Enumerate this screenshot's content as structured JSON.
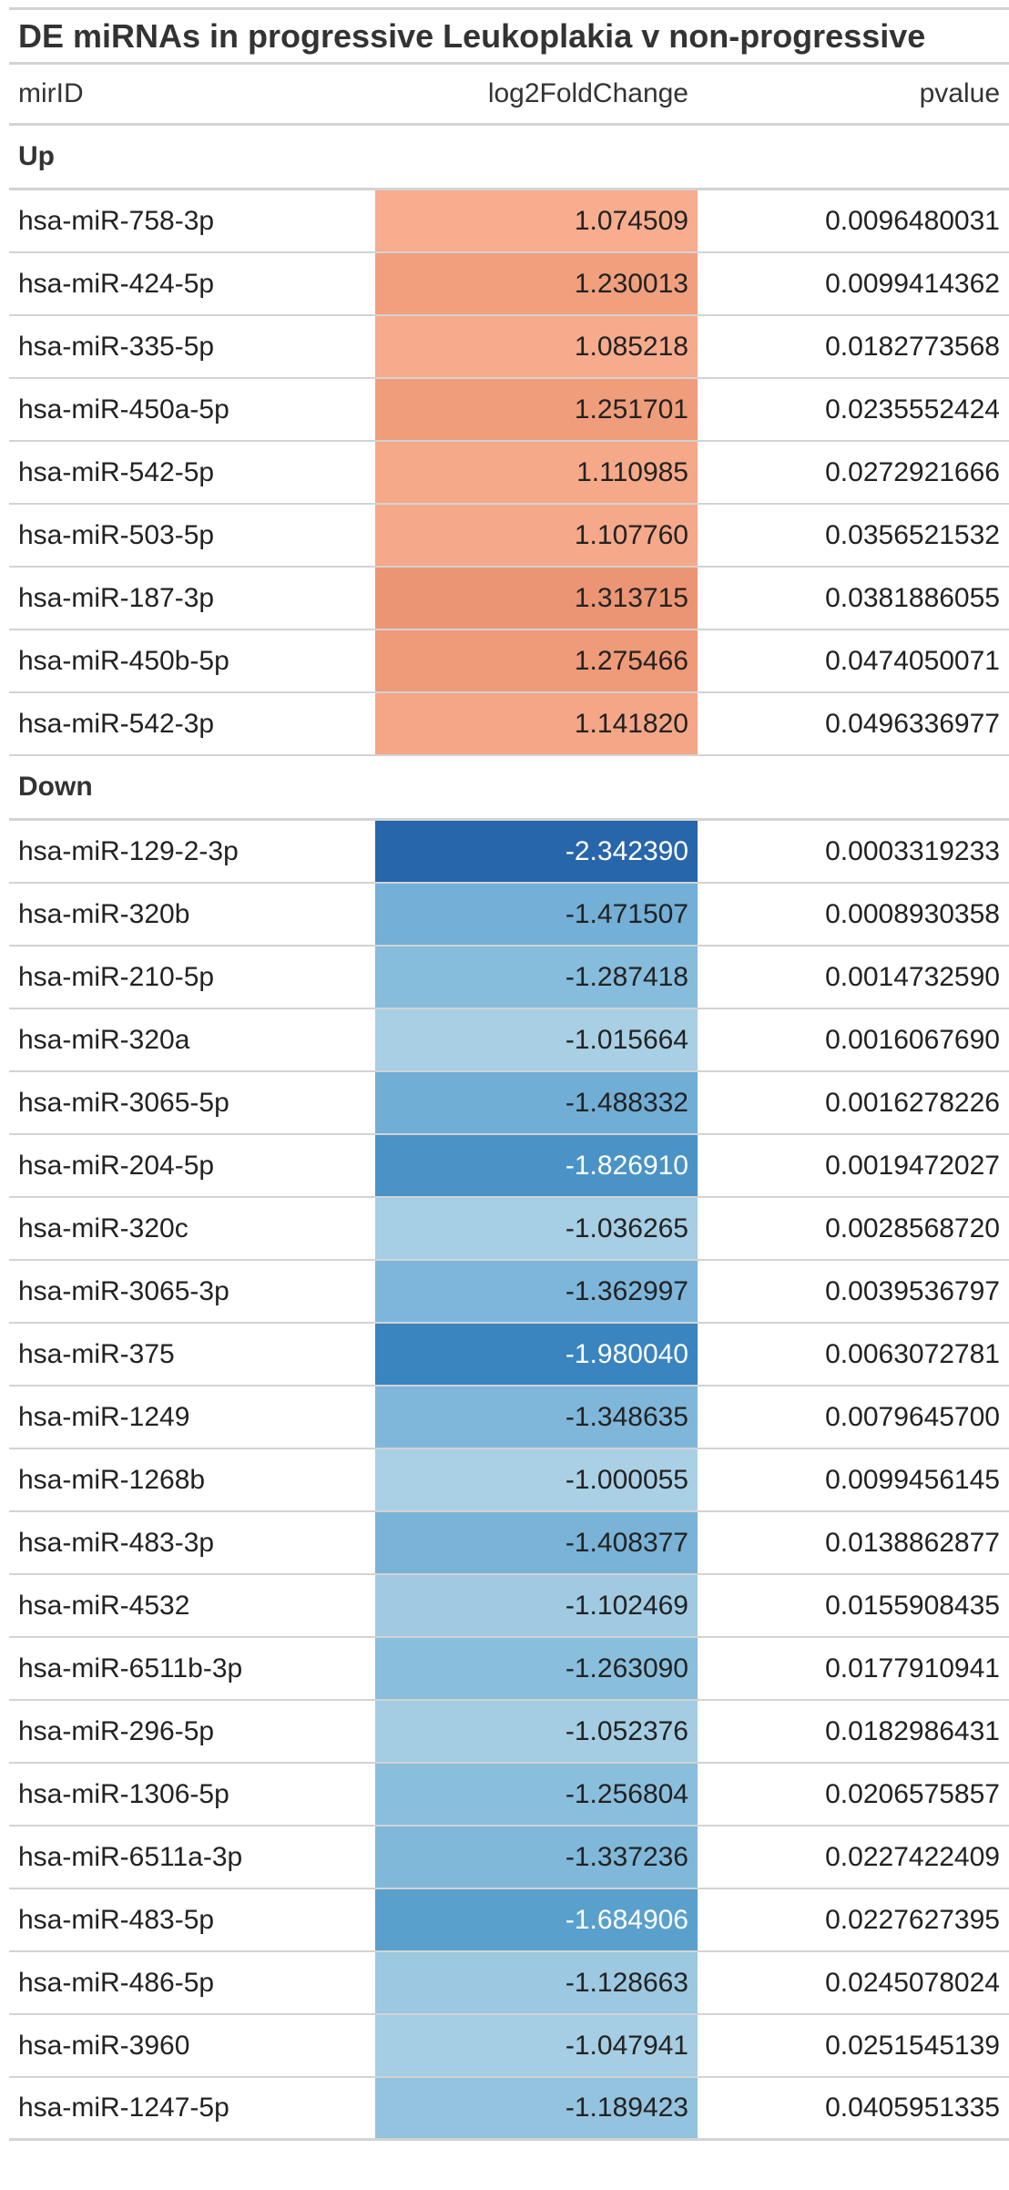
{
  "title": "DE miRNAs in progressive Leukoplakia v non-progressive",
  "columns": {
    "mirid": "mirID",
    "log2fc": "log2FoldChange",
    "pvalue": "pvalue"
  },
  "groups": [
    {
      "label": "Up",
      "rows": [
        {
          "mirid": "hsa-miR-758-3p",
          "log2fc": "1.074509",
          "pvalue": "0.0096480031",
          "fill": "#f7ad8e",
          "text_color": "#222222"
        },
        {
          "mirid": "hsa-miR-424-5p",
          "log2fc": "1.230013",
          "pvalue": "0.0099414362",
          "fill": "#f19f7d",
          "text_color": "#222222"
        },
        {
          "mirid": "hsa-miR-335-5p",
          "log2fc": "1.085218",
          "pvalue": "0.0182773568",
          "fill": "#f6ab8c",
          "text_color": "#222222"
        },
        {
          "mirid": "hsa-miR-450a-5p",
          "log2fc": "1.251701",
          "pvalue": "0.0235552424",
          "fill": "#f09d7b",
          "text_color": "#222222"
        },
        {
          "mirid": "hsa-miR-542-5p",
          "log2fc": "1.110985",
          "pvalue": "0.0272921666",
          "fill": "#f5a989",
          "text_color": "#222222"
        },
        {
          "mirid": "hsa-miR-503-5p",
          "log2fc": "1.107760",
          "pvalue": "0.0356521532",
          "fill": "#f5a98a",
          "text_color": "#222222"
        },
        {
          "mirid": "hsa-miR-187-3p",
          "log2fc": "1.313715",
          "pvalue": "0.0381886055",
          "fill": "#ec9574",
          "text_color": "#222222"
        },
        {
          "mirid": "hsa-miR-450b-5p",
          "log2fc": "1.275466",
          "pvalue": "0.0474050071",
          "fill": "#ef9a78",
          "text_color": "#222222"
        },
        {
          "mirid": "hsa-miR-542-3p",
          "log2fc": "1.141820",
          "pvalue": "0.0496336977",
          "fill": "#f4a686",
          "text_color": "#222222"
        }
      ]
    },
    {
      "label": "Down",
      "rows": [
        {
          "mirid": "hsa-miR-129-2-3p",
          "log2fc": "-2.342390",
          "pvalue": "0.0003319233",
          "fill": "#2866ab",
          "text_color": "#ffffff"
        },
        {
          "mirid": "hsa-miR-320b",
          "log2fc": "-1.471507",
          "pvalue": "0.0008930358",
          "fill": "#73afd6",
          "text_color": "#222222"
        },
        {
          "mirid": "hsa-miR-210-5p",
          "log2fc": "-1.287418",
          "pvalue": "0.0014732590",
          "fill": "#86bcdc",
          "text_color": "#222222"
        },
        {
          "mirid": "hsa-miR-320a",
          "log2fc": "-1.015664",
          "pvalue": "0.0016067690",
          "fill": "#a8cfe4",
          "text_color": "#222222"
        },
        {
          "mirid": "hsa-miR-3065-5p",
          "log2fc": "-1.488332",
          "pvalue": "0.0016278226",
          "fill": "#71aed6",
          "text_color": "#222222"
        },
        {
          "mirid": "hsa-miR-204-5p",
          "log2fc": "-1.826910",
          "pvalue": "0.0019472027",
          "fill": "#4a93c6",
          "text_color": "#ffffff"
        },
        {
          "mirid": "hsa-miR-320c",
          "log2fc": "-1.036265",
          "pvalue": "0.0028568720",
          "fill": "#a6cee4",
          "text_color": "#222222"
        },
        {
          "mirid": "hsa-miR-3065-3p",
          "log2fc": "-1.362997",
          "pvalue": "0.0039536797",
          "fill": "#7db6da",
          "text_color": "#222222"
        },
        {
          "mirid": "hsa-miR-375",
          "log2fc": "-1.980040",
          "pvalue": "0.0063072781",
          "fill": "#3a84c0",
          "text_color": "#ffffff"
        },
        {
          "mirid": "hsa-miR-1249",
          "log2fc": "-1.348635",
          "pvalue": "0.0079645700",
          "fill": "#7fb7da",
          "text_color": "#222222"
        },
        {
          "mirid": "hsa-miR-1268b",
          "log2fc": "-1.000055",
          "pvalue": "0.0099456145",
          "fill": "#aad0e5",
          "text_color": "#222222"
        },
        {
          "mirid": "hsa-miR-483-3p",
          "log2fc": "-1.408377",
          "pvalue": "0.0138862877",
          "fill": "#79b3d8",
          "text_color": "#222222"
        },
        {
          "mirid": "hsa-miR-4532",
          "log2fc": "-1.102469",
          "pvalue": "0.0155908435",
          "fill": "#9fcae2",
          "text_color": "#222222"
        },
        {
          "mirid": "hsa-miR-6511b-3p",
          "log2fc": "-1.263090",
          "pvalue": "0.0177910941",
          "fill": "#89bedd",
          "text_color": "#222222"
        },
        {
          "mirid": "hsa-miR-296-5p",
          "log2fc": "-1.052376",
          "pvalue": "0.0182986431",
          "fill": "#a4cde3",
          "text_color": "#222222"
        },
        {
          "mirid": "hsa-miR-1306-5p",
          "log2fc": "-1.256804",
          "pvalue": "0.0206575857",
          "fill": "#8abedd",
          "text_color": "#222222"
        },
        {
          "mirid": "hsa-miR-6511a-3p",
          "log2fc": "-1.337236",
          "pvalue": "0.0227422409",
          "fill": "#80b8da",
          "text_color": "#222222"
        },
        {
          "mirid": "hsa-miR-483-5p",
          "log2fc": "-1.684906",
          "pvalue": "0.0227627395",
          "fill": "#5aa0cd",
          "text_color": "#ffffff"
        },
        {
          "mirid": "hsa-miR-486-5p",
          "log2fc": "-1.128663",
          "pvalue": "0.0245078024",
          "fill": "#9cc8e1",
          "text_color": "#222222"
        },
        {
          "mirid": "hsa-miR-3960",
          "log2fc": "-1.047941",
          "pvalue": "0.0251545139",
          "fill": "#a5cde3",
          "text_color": "#222222"
        },
        {
          "mirid": "hsa-miR-1247-5p",
          "log2fc": "-1.189423",
          "pvalue": "0.0405951335",
          "fill": "#93c3df",
          "text_color": "#222222"
        }
      ]
    }
  ]
}
